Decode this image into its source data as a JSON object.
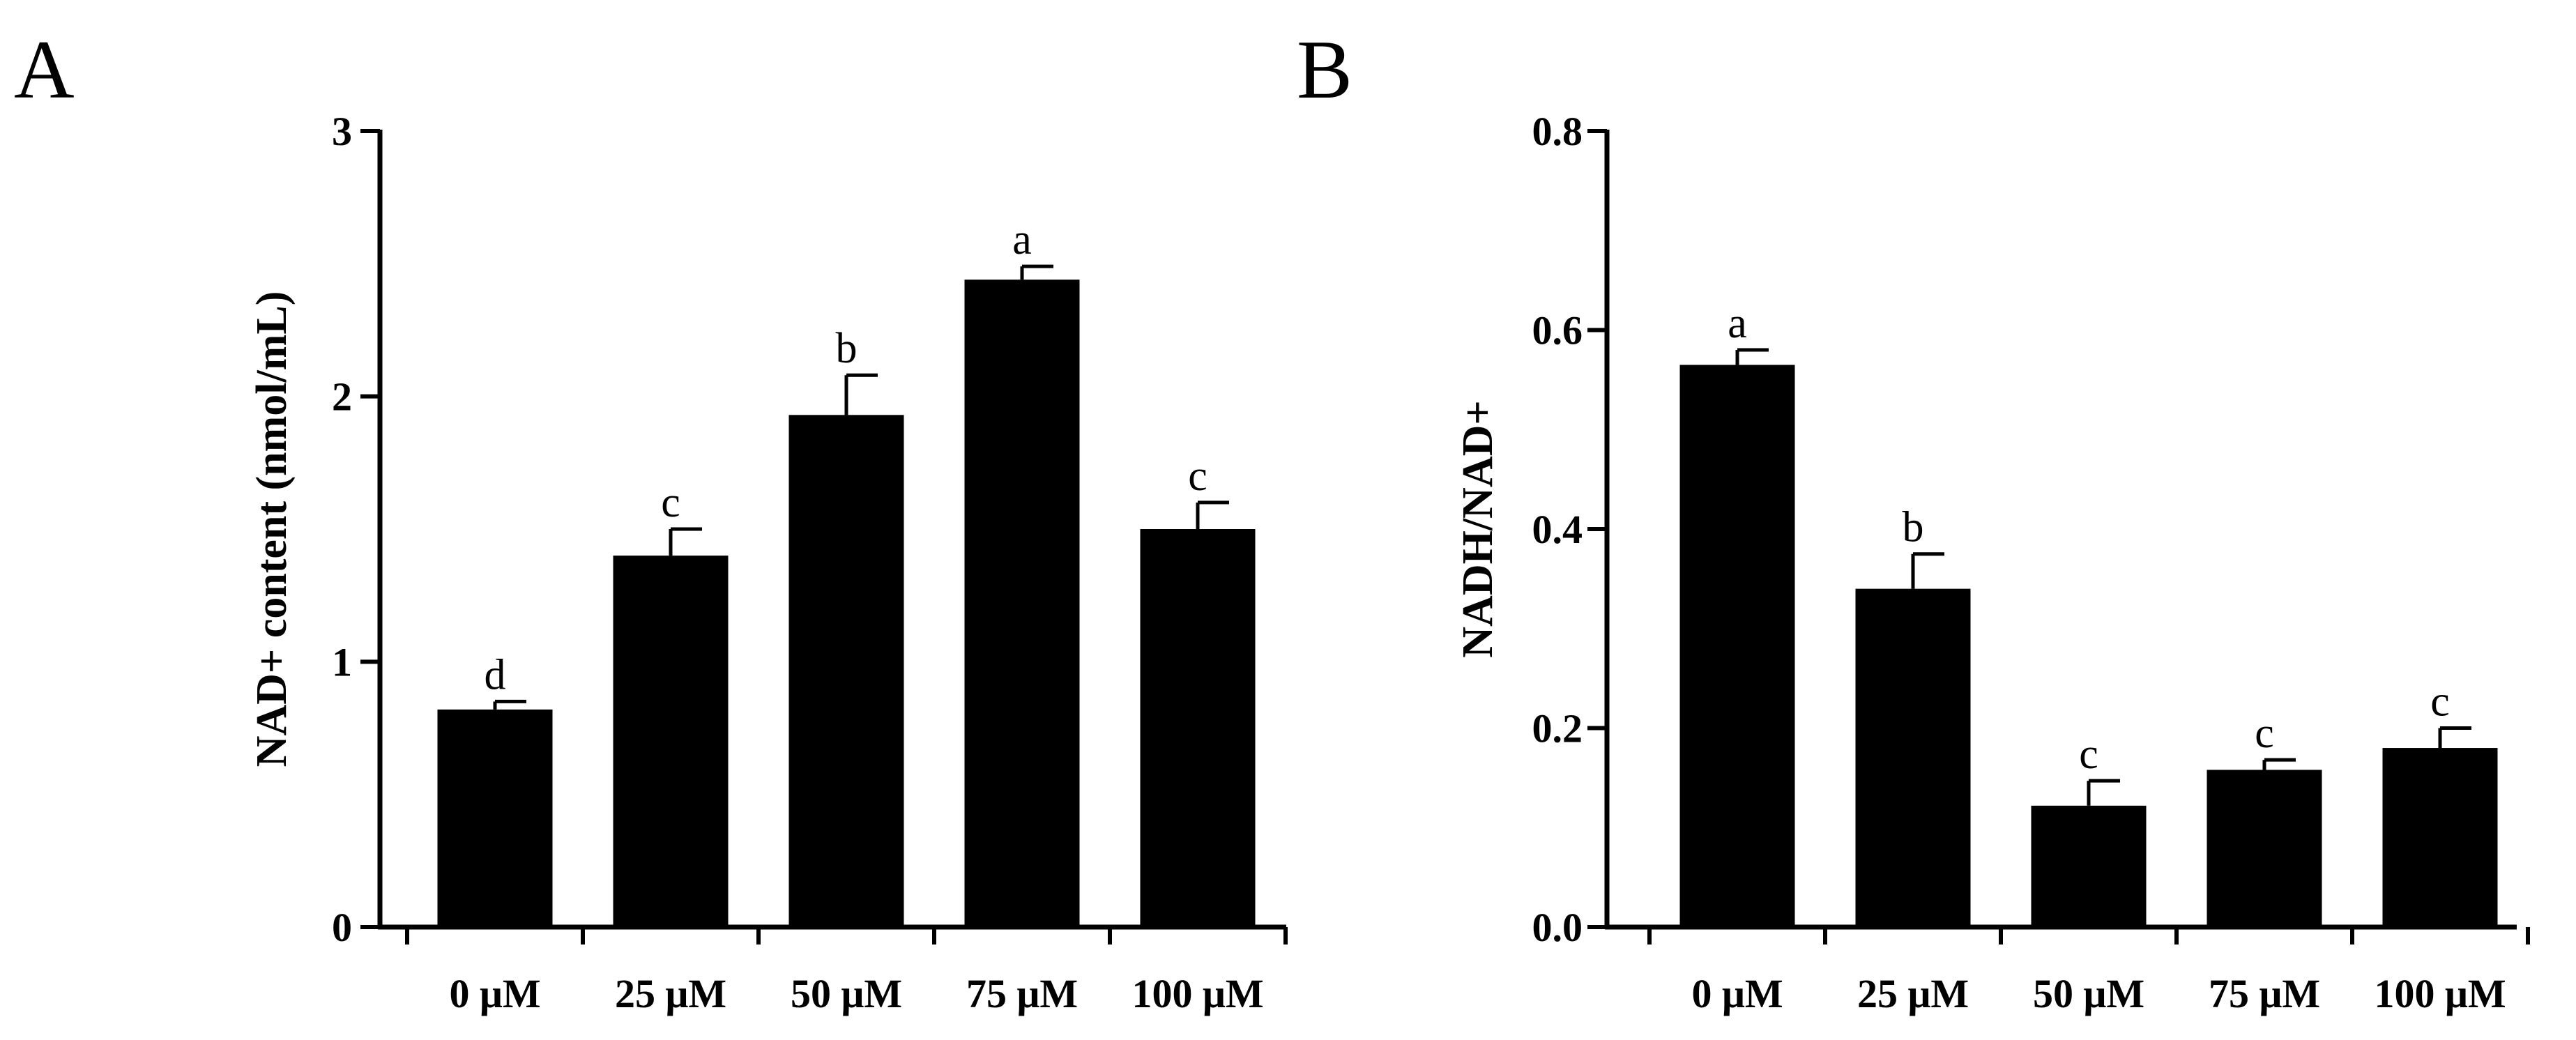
{
  "chart_data": [
    {
      "type": "bar",
      "panel_label": "A",
      "title": "",
      "xlabel": "",
      "ylabel": "NAD+ content (nmol/mL)",
      "categories": [
        "0 μM",
        "25 μM",
        "50 μM",
        "75 μM",
        "100 μM"
      ],
      "values": [
        0.82,
        1.4,
        1.93,
        2.44,
        1.5
      ],
      "errors": [
        0.03,
        0.1,
        0.15,
        0.05,
        0.1
      ],
      "significance": [
        "d",
        "c",
        "b",
        "a",
        "c"
      ],
      "ylim": [
        0,
        3
      ],
      "yticks": [
        0,
        1,
        2,
        3
      ],
      "ytick_labels": [
        "0",
        "1",
        "2",
        "3"
      ],
      "bar_color": "#000000"
    },
    {
      "type": "bar",
      "panel_label": "B",
      "title": "",
      "xlabel": "",
      "ylabel": "NADH/NAD+",
      "categories": [
        "0 μM",
        "25 μM",
        "50 μM",
        "75 μM",
        "100 μM"
      ],
      "values": [
        0.565,
        0.34,
        0.122,
        0.158,
        0.18
      ],
      "errors": [
        0.015,
        0.035,
        0.025,
        0.01,
        0.02
      ],
      "significance": [
        "a",
        "b",
        "c",
        "c",
        "c"
      ],
      "ylim": [
        0,
        0.8
      ],
      "yticks": [
        0,
        0.2,
        0.4,
        0.6,
        0.8
      ],
      "ytick_labels": [
        "0.0",
        "0.2",
        "0.4",
        "0.6",
        "0.8"
      ],
      "bar_color": "#000000"
    }
  ]
}
